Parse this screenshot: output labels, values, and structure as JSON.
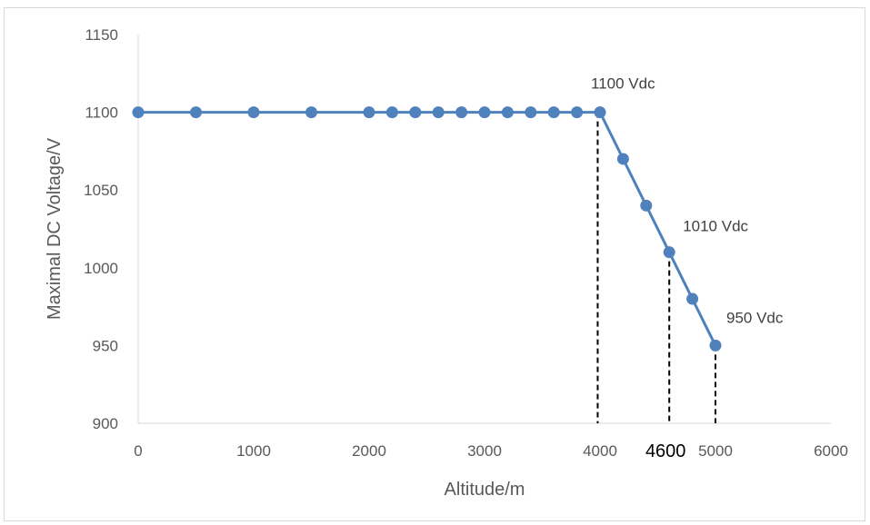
{
  "chart_data": {
    "type": "line",
    "xlabel": "Altitude/m",
    "ylabel": "Maximal DC Voltage/V",
    "xlim": [
      0,
      6000
    ],
    "ylim": [
      900,
      1150
    ],
    "x_ticks": [
      0,
      1000,
      2000,
      3000,
      4000,
      5000,
      6000
    ],
    "y_ticks": [
      900,
      950,
      1000,
      1050,
      1100,
      1150
    ],
    "grid": false,
    "series": [
      {
        "color": "#4f81bd",
        "points": [
          [
            0,
            1100
          ],
          [
            500,
            1100
          ],
          [
            1000,
            1100
          ],
          [
            1500,
            1100
          ],
          [
            2000,
            1100
          ],
          [
            2200,
            1100
          ],
          [
            2400,
            1100
          ],
          [
            2600,
            1100
          ],
          [
            2800,
            1100
          ],
          [
            3000,
            1100
          ],
          [
            3200,
            1100
          ],
          [
            3400,
            1100
          ],
          [
            3600,
            1100
          ],
          [
            3800,
            1100
          ],
          [
            4000,
            1100
          ],
          [
            4200,
            1070
          ],
          [
            4400,
            1040
          ],
          [
            4600,
            1010
          ],
          [
            4800,
            980
          ],
          [
            5000,
            950
          ]
        ]
      }
    ],
    "annotations": [
      {
        "text": "1100 Vdc",
        "x": 4000,
        "y": 1100
      },
      {
        "text": "1010 Vdc",
        "x": 4600,
        "y": 1010
      },
      {
        "text": "950 Vdc",
        "x": 5000,
        "y": 950
      }
    ],
    "reference_lines": [
      {
        "x": 3980,
        "y": 1100
      },
      {
        "x": 4600,
        "y": 1010
      },
      {
        "x": 5000,
        "y": 950
      }
    ],
    "highlight_label": {
      "text": "4600",
      "x": 4600
    }
  }
}
